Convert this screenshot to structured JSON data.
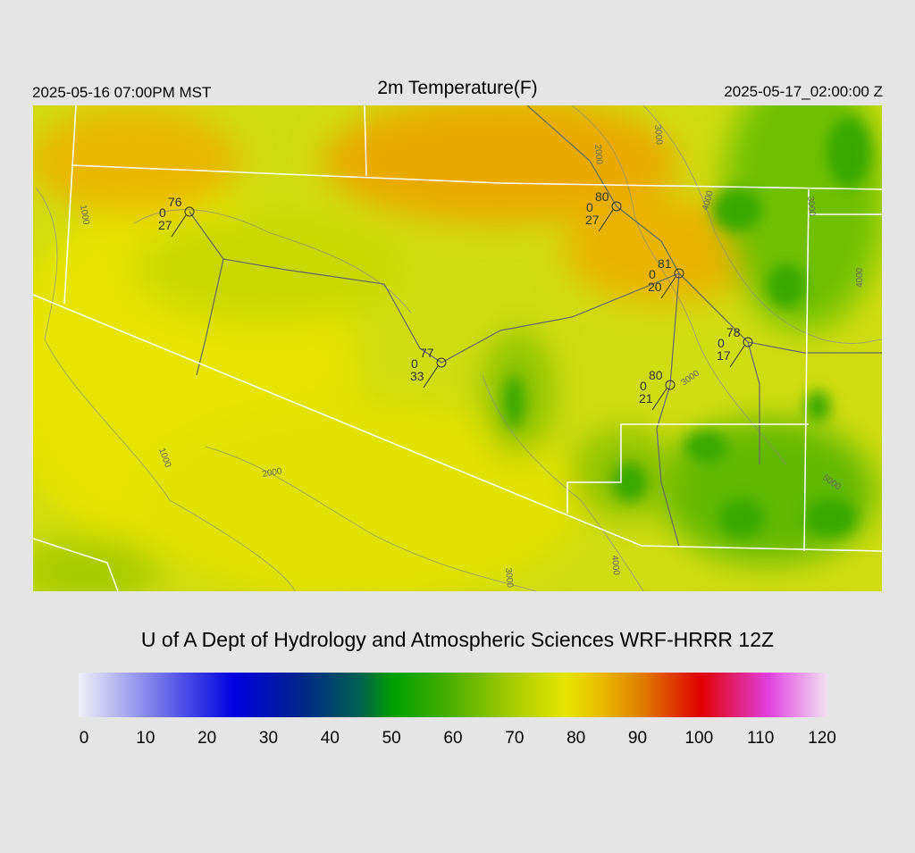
{
  "header": {
    "left": "2025-05-16 07:00PM MST",
    "title": "2m Temperature(F)",
    "right": "2025-05-17_02:00:00 Z"
  },
  "stations": [
    {
      "temperature": 76,
      "wind": 0,
      "dewpoint": 27
    },
    {
      "temperature": 80,
      "wind": 0,
      "dewpoint": 27
    },
    {
      "temperature": 81,
      "wind": 0,
      "dewpoint": 20
    },
    {
      "temperature": 78,
      "wind": 0,
      "dewpoint": 17
    },
    {
      "temperature": 77,
      "wind": 0,
      "dewpoint": 33
    },
    {
      "temperature": 80,
      "wind": 0,
      "dewpoint": 21
    }
  ],
  "contour_labels": [
    "1000",
    "1000",
    "2000",
    "2000",
    "3000",
    "3000",
    "4000",
    "4000",
    "3000",
    "5000",
    "3000",
    "4000"
  ],
  "credit": "U of A Dept of Hydrology and Atmospheric Sciences WRF-HRRR 12Z",
  "colorbar": {
    "ticks": [
      0,
      10,
      20,
      30,
      40,
      50,
      60,
      70,
      80,
      90,
      100,
      110,
      120
    ]
  }
}
